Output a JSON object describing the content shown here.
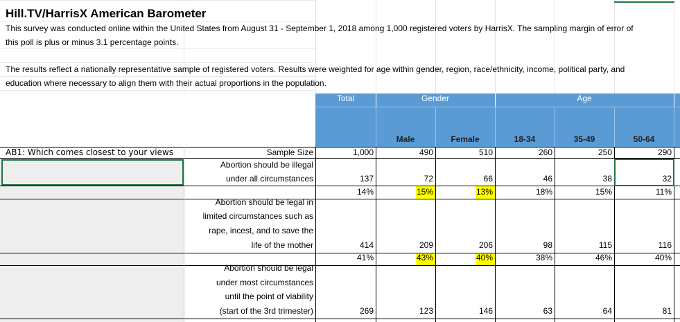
{
  "header": {
    "title": "Hill.TV/HarrisX American Barometer",
    "paragraphs": [
      [
        "This survey was conducted online within the United States from August 31 - September 1, 2018 among 1,000 registered voters by HarrisX.  The sampling margin of error of",
        "this poll is plus or minus 3.1 percentage points."
      ],
      [
        "The results reflect a nationally representative sample of registered voters. Results were weighted for age within gender, region, race/ethnicity, income, political party, and",
        "education where necessary to align them with their actual proportions in the population."
      ]
    ]
  },
  "table": {
    "group_headers": [
      "Total",
      "Gender",
      "Age"
    ],
    "columns": [
      "Male",
      "Female",
      "18-34",
      "35-49",
      "50-64"
    ],
    "question": "AB1: Which comes closest to your views",
    "sample_size_label": "Sample Size",
    "sample_size": [
      "1,000",
      "490",
      "510",
      "260",
      "250",
      "290"
    ],
    "rows": [
      {
        "label_lines": [
          "Abortion should be illegal",
          "under all circumstances"
        ],
        "counts": [
          "137",
          "72",
          "66",
          "46",
          "38",
          "32"
        ],
        "percents": [
          "14%",
          "15%",
          "13%",
          "18%",
          "15%",
          "11%"
        ]
      },
      {
        "label_lines": [
          "Abortion should be legal in",
          "limited circumstances such as",
          "rape, incest, and to save the",
          "life of the mother"
        ],
        "counts": [
          "414",
          "209",
          "206",
          "98",
          "115",
          "116"
        ],
        "percents": [
          "41%",
          "43%",
          "40%",
          "38%",
          "46%",
          "40%"
        ]
      },
      {
        "label_lines": [
          "Abortion should be legal",
          "under most circumstances",
          "until the point of viability",
          "(start of the 3rd trimester)"
        ],
        "counts": [
          "269",
          "123",
          "146",
          "63",
          "64",
          "81"
        ]
      }
    ]
  }
}
